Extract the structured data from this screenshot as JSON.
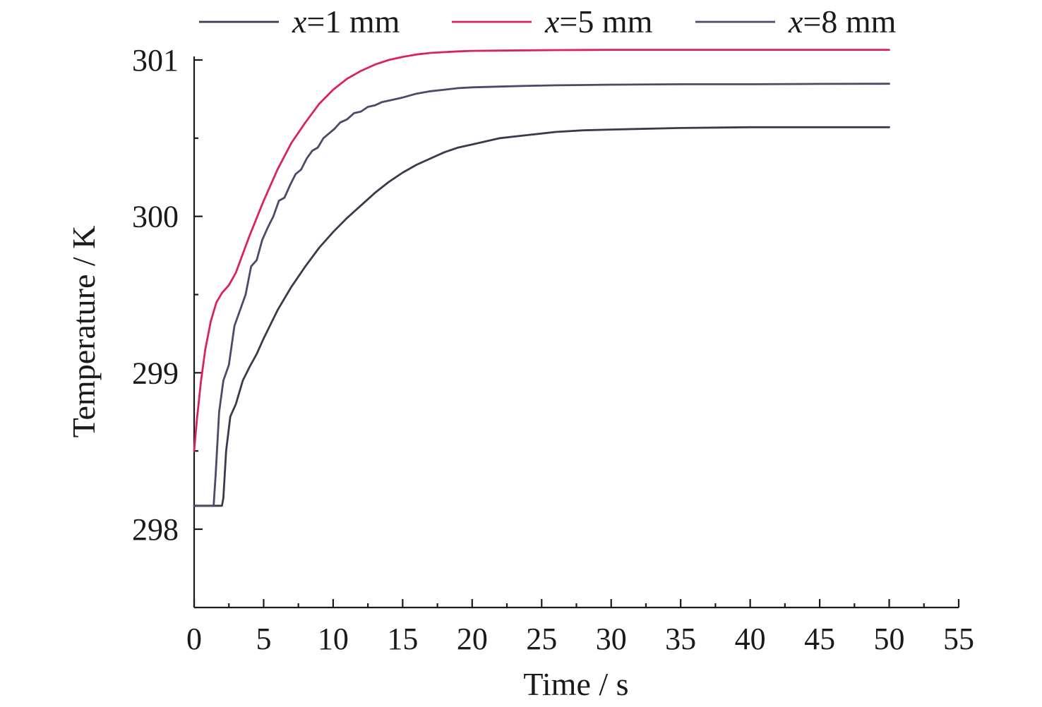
{
  "chart_data": {
    "type": "line",
    "title": "",
    "xlabel": "Time / s",
    "ylabel": "Temperature / K",
    "xlim": [
      0,
      55
    ],
    "ylim": [
      297.5,
      301.2
    ],
    "xticks": [
      0,
      5,
      10,
      15,
      20,
      25,
      30,
      35,
      40,
      45,
      50,
      55
    ],
    "xtick_labels": [
      "0",
      "5",
      "10",
      "15",
      "20",
      "25",
      "30",
      "35",
      "40",
      "45",
      "50",
      "55"
    ],
    "yticks": [
      298,
      299,
      300,
      301
    ],
    "ytick_labels": [
      "298",
      "299",
      "300",
      "301"
    ],
    "grid": false,
    "legend_position": "top",
    "series": [
      {
        "name": "x=1 mm",
        "name_var": "x",
        "name_rest": "=1 mm",
        "color": "#3a3a4a",
        "x": [
          0,
          1,
          2,
          2.1,
          2.3,
          2.6,
          3,
          3.5,
          4,
          4.5,
          5,
          6,
          7,
          8,
          9,
          10,
          11,
          12,
          13,
          14,
          15,
          16,
          17,
          18,
          19,
          20,
          22,
          24,
          26,
          28,
          30,
          35,
          40,
          45,
          50
        ],
        "y": [
          298.15,
          298.15,
          298.15,
          298.2,
          298.5,
          298.72,
          298.8,
          298.95,
          299.04,
          299.12,
          299.22,
          299.4,
          299.55,
          299.68,
          299.8,
          299.9,
          299.99,
          300.07,
          300.15,
          300.22,
          300.28,
          300.33,
          300.37,
          300.41,
          300.44,
          300.46,
          300.5,
          300.52,
          300.54,
          300.55,
          300.555,
          300.565,
          300.57,
          300.57,
          300.57
        ]
      },
      {
        "name": "x=5 mm",
        "name_var": "x",
        "name_rest": "=5 mm",
        "color": "#d9245a",
        "x": [
          0,
          0.2,
          0.5,
          0.8,
          1.2,
          1.6,
          2,
          2.5,
          3,
          3.5,
          4,
          5,
          6,
          7,
          8,
          9,
          10,
          11,
          12,
          13,
          14,
          15,
          16,
          17,
          18,
          19,
          20,
          22,
          24,
          26,
          28,
          30,
          35,
          40,
          45,
          50
        ],
        "y": [
          298.5,
          298.7,
          298.95,
          299.15,
          299.33,
          299.45,
          299.51,
          299.56,
          299.64,
          299.76,
          299.88,
          300.1,
          300.3,
          300.47,
          300.6,
          300.72,
          300.81,
          300.88,
          300.93,
          300.97,
          301.0,
          301.02,
          301.035,
          301.045,
          301.05,
          301.055,
          301.058,
          301.06,
          301.062,
          301.063,
          301.064,
          301.065,
          301.065,
          301.065,
          301.065,
          301.065
        ]
      },
      {
        "name": "x=8 mm",
        "name_var": "x",
        "name_rest": "=8 mm",
        "color": "#4a4a6a",
        "x": [
          0,
          0.8,
          1.4,
          1.55,
          1.8,
          2.1,
          2.5,
          2.9,
          3.3,
          3.7,
          4.1,
          4.5,
          4.9,
          5.3,
          5.7,
          6.1,
          6.5,
          6.9,
          7.3,
          7.7,
          8.1,
          8.5,
          8.9,
          9.3,
          9.7,
          10.1,
          10.5,
          11,
          11.5,
          12,
          12.5,
          13,
          13.5,
          14,
          15,
          16,
          17,
          18,
          19,
          20,
          22,
          24,
          26,
          28,
          30,
          35,
          40,
          45,
          50
        ],
        "y": [
          298.15,
          298.15,
          298.15,
          298.35,
          298.75,
          298.95,
          299.05,
          299.3,
          299.4,
          299.5,
          299.68,
          299.72,
          299.85,
          299.93,
          300.0,
          300.1,
          300.12,
          300.2,
          300.27,
          300.3,
          300.37,
          300.42,
          300.44,
          300.5,
          300.53,
          300.56,
          300.6,
          300.62,
          300.66,
          300.67,
          300.7,
          300.71,
          300.73,
          300.74,
          300.76,
          300.785,
          300.8,
          300.81,
          300.82,
          300.825,
          300.83,
          300.835,
          300.838,
          300.84,
          300.842,
          300.845,
          300.845,
          300.847,
          300.848
        ]
      }
    ]
  }
}
